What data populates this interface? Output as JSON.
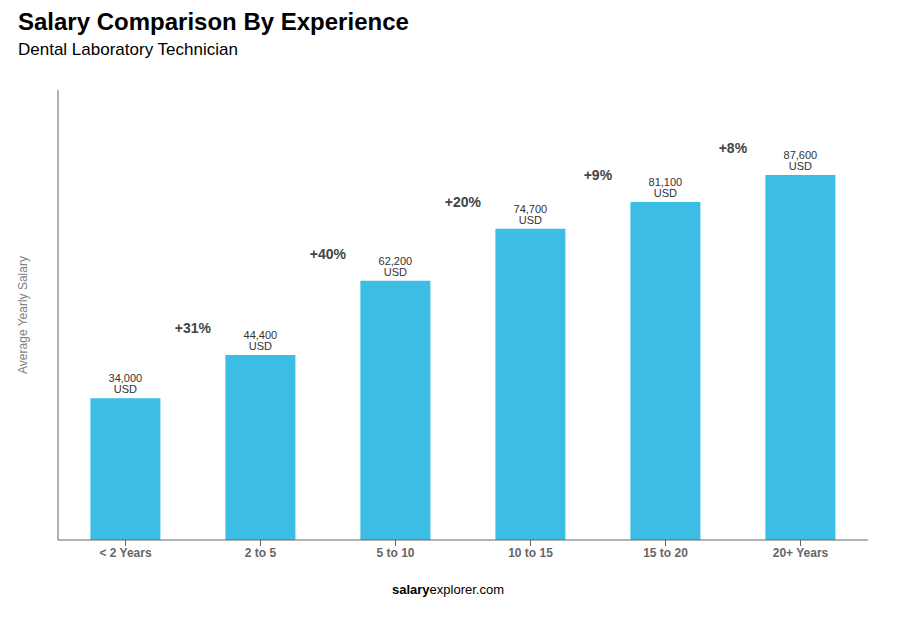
{
  "chart_data": {
    "type": "bar",
    "title": "Salary Comparison By Experience",
    "subtitle": "Dental Laboratory Technician",
    "categories": [
      "< 2 Years",
      "2 to 5",
      "5 to 10",
      "10 to 15",
      "15 to 20",
      "20+ Years"
    ],
    "values": [
      34000,
      44400,
      62200,
      74700,
      81100,
      87600
    ],
    "value_labels": [
      "34,000 USD",
      "44,400 USD",
      "62,200 USD",
      "74,700 USD",
      "81,100 USD",
      "87,600 USD"
    ],
    "data_labels": true,
    "color": "#3bbde4",
    "ylim": [
      0,
      108000
    ],
    "ylabel": "Average Yearly Salary",
    "annotations": [
      "+31%",
      "+40%",
      "+20%",
      "+9%",
      "+8%"
    ],
    "footer": [
      "salary",
      "explorer.com"
    ],
    "tick_labels": "x"
  }
}
